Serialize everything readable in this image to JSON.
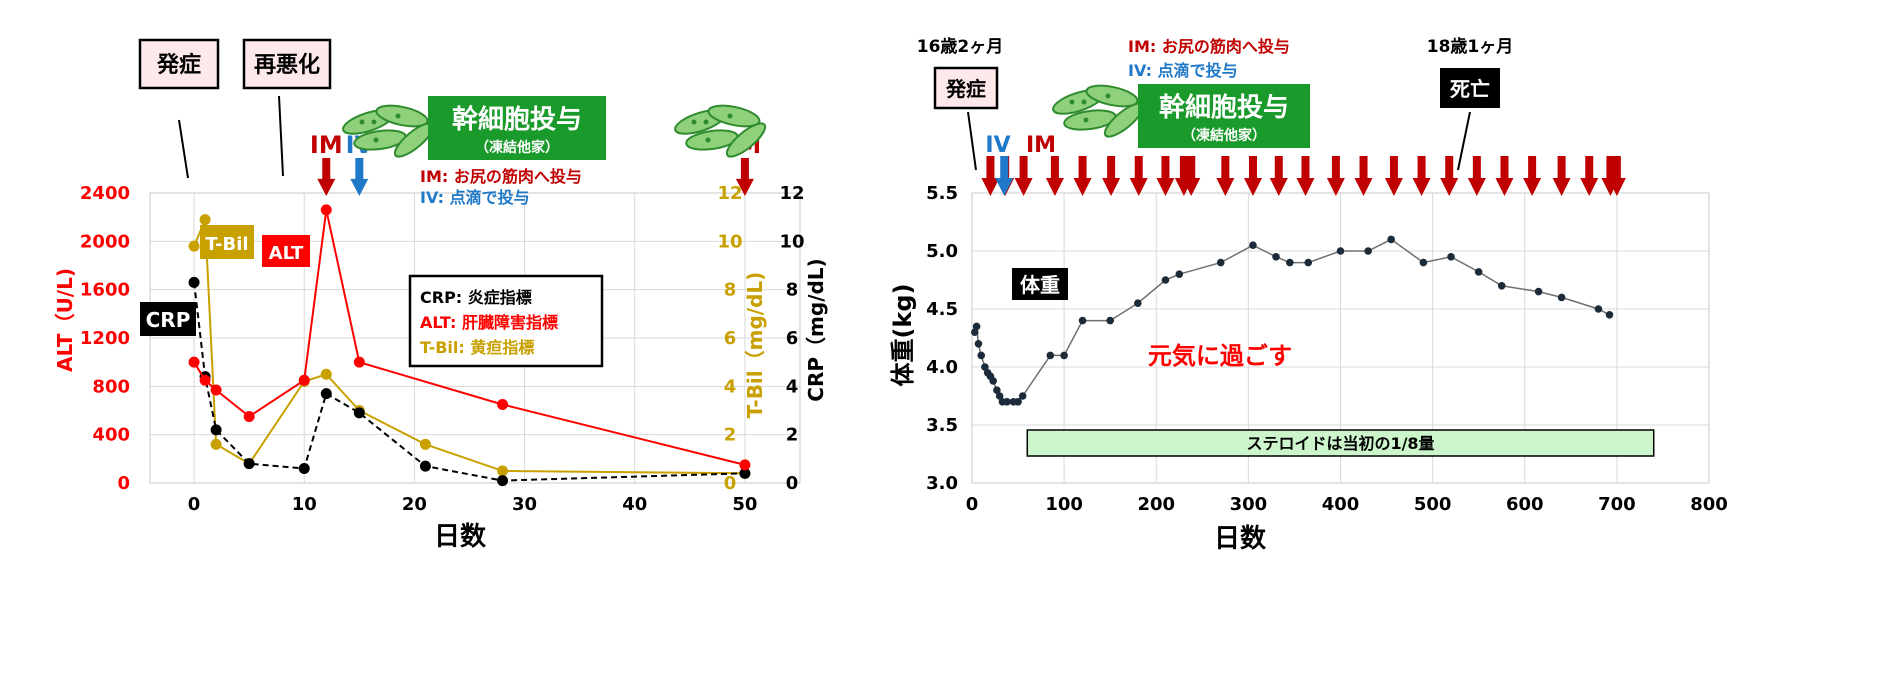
{
  "chart_data": [
    {
      "type": "line",
      "xlabel": "日数",
      "ylabel_left": "ALT（U/L)",
      "ylabel_right1": "T-Bil（mg/dL)",
      "ylabel_right2": "CRP（mg/dL)",
      "x_ticks": [
        0,
        10,
        20,
        30,
        40,
        50
      ],
      "y_left_ticks": [
        0,
        400,
        800,
        1200,
        1600,
        2000,
        2400
      ],
      "y_right_ticks": [
        0,
        2,
        4,
        6,
        8,
        10,
        12
      ],
      "xlim": [
        -4,
        55
      ],
      "ylim_left": [
        0,
        2400
      ],
      "ylim_right": [
        0,
        12
      ],
      "grid": true,
      "colors": {
        "alt": "#ff0000",
        "tbil": "#c8a000",
        "crp": "#000000",
        "im": "#c00000",
        "iv": "#1f78c8",
        "green": "#1a9a2a"
      },
      "series": [
        {
          "name": "ALT",
          "axis": "left",
          "style": "solid",
          "points": [
            [
              0,
              1000
            ],
            [
              1,
              850
            ],
            [
              2,
              770
            ],
            [
              5,
              550
            ],
            [
              10,
              850
            ],
            [
              12,
              2260
            ],
            [
              15,
              1000
            ],
            [
              28,
              650
            ],
            [
              50,
              150
            ]
          ]
        },
        {
          "name": "T-Bil",
          "axis": "right",
          "style": "solid",
          "points": [
            [
              0,
              9.8
            ],
            [
              1,
              10.9
            ],
            [
              2,
              1.6
            ],
            [
              5,
              0.8
            ],
            [
              10,
              4.2
            ],
            [
              12,
              4.5
            ],
            [
              15,
              3.0
            ],
            [
              21,
              1.6
            ],
            [
              28,
              0.5
            ],
            [
              50,
              0.4
            ]
          ]
        },
        {
          "name": "CRP",
          "axis": "right",
          "style": "dashed",
          "points": [
            [
              0,
              8.3
            ],
            [
              1,
              4.4
            ],
            [
              2,
              2.2
            ],
            [
              5,
              0.8
            ],
            [
              10,
              0.6
            ],
            [
              12,
              3.7
            ],
            [
              15,
              2.9
            ],
            [
              21,
              0.7
            ],
            [
              28,
              0.1
            ],
            [
              50,
              0.4
            ]
          ]
        }
      ],
      "callouts": {
        "onset": "発症",
        "relapse": "再悪化"
      },
      "series_labels": {
        "crp": "CRP",
        "tbil": "T-Bil",
        "alt": "ALT"
      },
      "arrows": [
        {
          "label": "IM",
          "x": 12,
          "color": "im"
        },
        {
          "label": "IV",
          "x": 15,
          "color": "iv"
        },
        {
          "label": "IM",
          "x": 50,
          "color": "im"
        }
      ],
      "stem_cell": {
        "title": "幹細胞投与",
        "subtitle": "（凍結他家）"
      },
      "notes": {
        "im": "IM: お尻の筋肉へ投与",
        "iv": "IV: 点滴で投与"
      },
      "legend": {
        "crp": "CRP: 炎症指標",
        "alt": "ALT: 肝臓障害指標",
        "tbil": "T-Bil: 黄疸指標"
      }
    },
    {
      "type": "line",
      "xlabel": "日数",
      "ylabel": "体重(kg)",
      "x_ticks": [
        0,
        100,
        200,
        300,
        400,
        500,
        600,
        700,
        800
      ],
      "y_ticks": [
        3.0,
        3.5,
        4.0,
        4.5,
        5.0,
        5.5
      ],
      "xlim": [
        0,
        800
      ],
      "ylim": [
        3.0,
        5.5
      ],
      "grid": true,
      "series": [
        {
          "name": "体重",
          "points": [
            [
              3,
              4.3
            ],
            [
              5,
              4.35
            ],
            [
              7,
              4.2
            ],
            [
              10,
              4.1
            ],
            [
              14,
              4.0
            ],
            [
              17,
              3.95
            ],
            [
              20,
              3.92
            ],
            [
              23,
              3.88
            ],
            [
              27,
              3.8
            ],
            [
              30,
              3.75
            ],
            [
              33,
              3.7
            ],
            [
              38,
              3.7
            ],
            [
              45,
              3.7
            ],
            [
              50,
              3.7
            ],
            [
              55,
              3.75
            ],
            [
              85,
              4.1
            ],
            [
              100,
              4.1
            ],
            [
              120,
              4.4
            ],
            [
              150,
              4.4
            ],
            [
              180,
              4.55
            ],
            [
              210,
              4.75
            ],
            [
              225,
              4.8
            ],
            [
              270,
              4.9
            ],
            [
              305,
              5.05
            ],
            [
              330,
              4.95
            ],
            [
              345,
              4.9
            ],
            [
              365,
              4.9
            ],
            [
              400,
              5.0
            ],
            [
              430,
              5.0
            ],
            [
              455,
              5.1
            ],
            [
              490,
              4.9
            ],
            [
              520,
              4.95
            ],
            [
              550,
              4.82
            ],
            [
              575,
              4.7
            ],
            [
              615,
              4.65
            ],
            [
              640,
              4.6
            ],
            [
              680,
              4.5
            ],
            [
              692,
              4.45
            ]
          ]
        }
      ],
      "im_days": [
        20,
        36,
        56,
        90,
        120,
        151,
        181,
        210,
        230,
        238,
        275,
        305,
        333,
        362,
        395,
        425,
        458,
        488,
        518,
        548,
        578,
        608,
        640,
        670,
        693,
        700
      ],
      "iv_day": 35,
      "age_labels": {
        "start": "16歳2ヶ月",
        "end": "18歳1ヶ月"
      },
      "callouts": {
        "onset": "発症",
        "death": "死亡"
      },
      "arrow_labels": {
        "iv": "IV",
        "im": "IM"
      },
      "series_label": "体重",
      "annotation": "元気に過ごす",
      "steroid_note": "ステロイドは当初の1/8量",
      "steroid_range": [
        60,
        740
      ],
      "stem_cell": {
        "title": "幹細胞投与",
        "subtitle": "（凍結他家）"
      },
      "notes": {
        "im": "IM: お尻の筋肉へ投与",
        "iv": "IV: 点滴で投与"
      }
    }
  ]
}
